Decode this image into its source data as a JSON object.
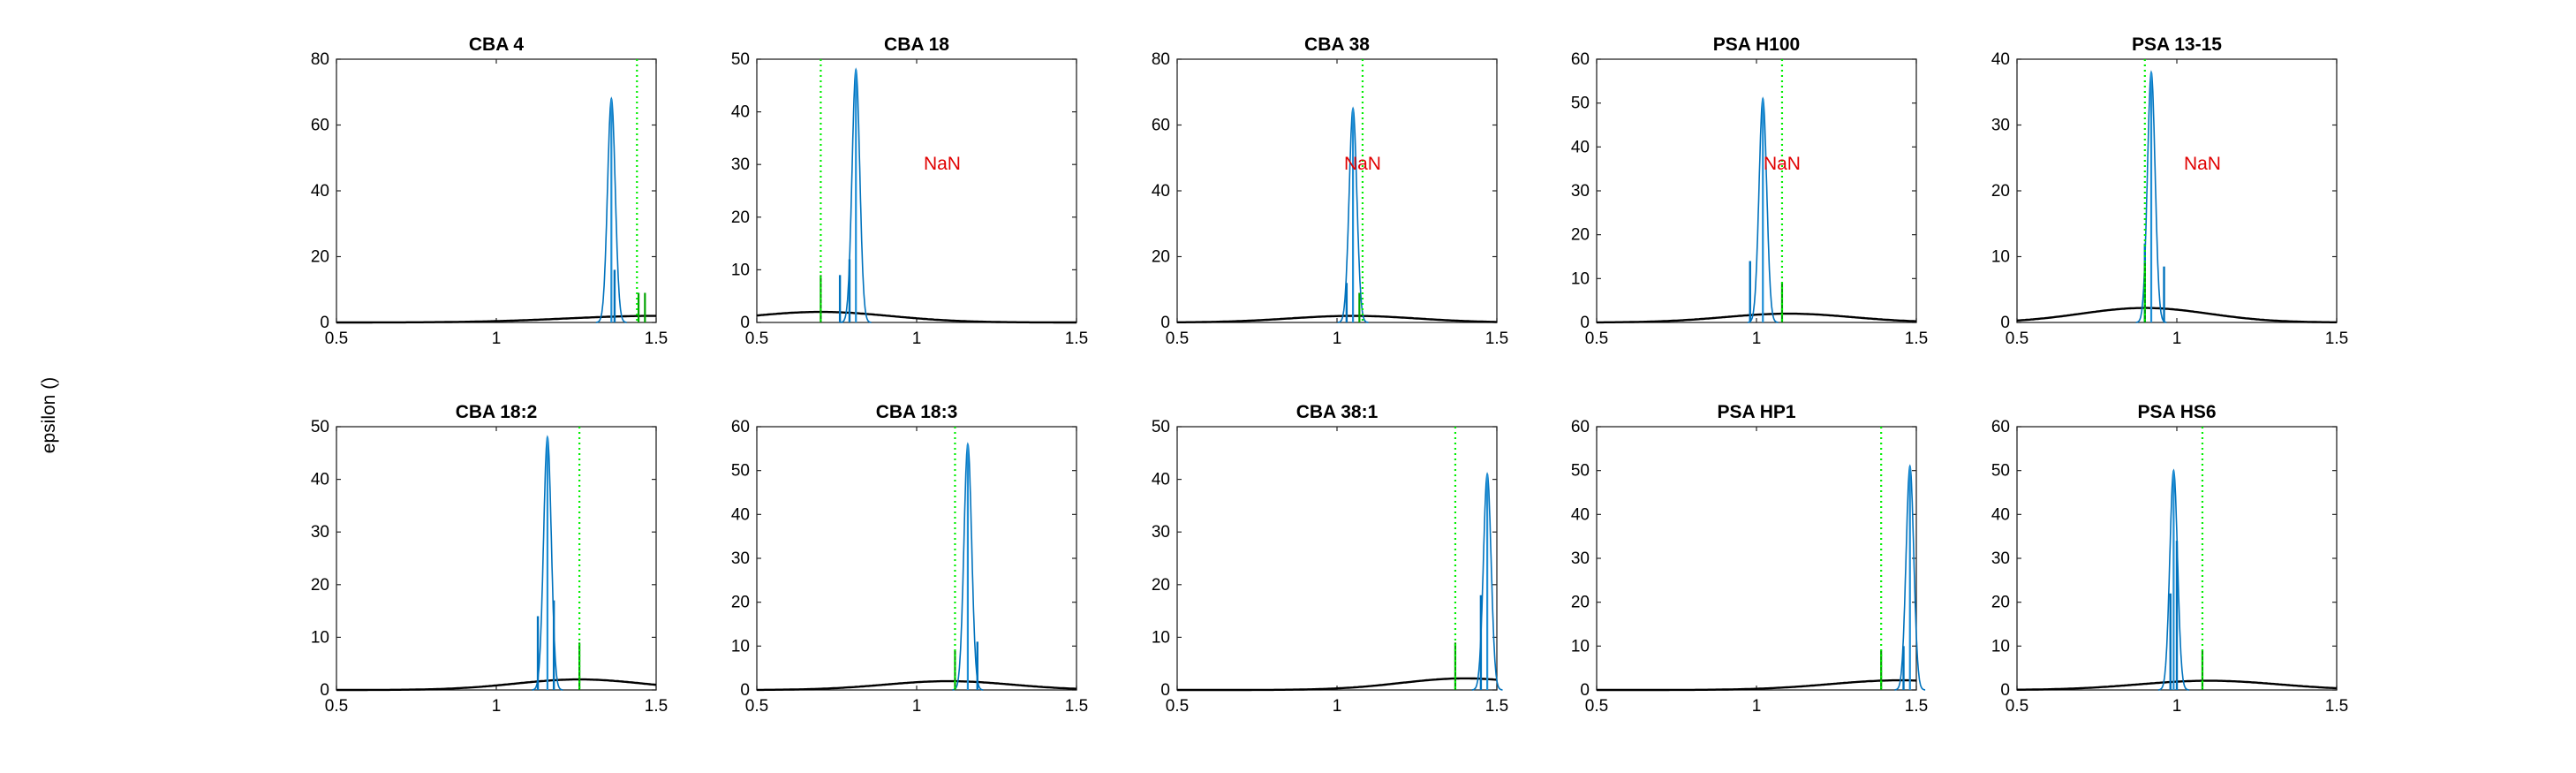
{
  "figure": {
    "ylabel": "epsilon ()",
    "colors": {
      "histogram": "#0072BD",
      "histogram_fill": "#1f8fd6",
      "marker": "#00a300",
      "prior_line": "#000000",
      "reference_line": "#00ee00",
      "nan_text": "#e00000",
      "axes": "#262626"
    }
  },
  "chart_data": [
    {
      "type": "histogram",
      "title": "CBA 4",
      "xlim": [
        0.5,
        1.5
      ],
      "ylim": [
        0,
        80
      ],
      "xticks": [
        "0.5",
        "1",
        "1.5"
      ],
      "yticks": [
        "0",
        "20",
        "40",
        "60",
        "80"
      ],
      "peak_x": 1.36,
      "peak_y": 68,
      "hist_spread": 0.012,
      "spikes": [
        {
          "x": 1.37,
          "y": 16
        }
      ],
      "markers": [
        {
          "x": 1.445,
          "y": 9
        },
        {
          "x": 1.465,
          "y": 9
        }
      ],
      "reference_x": 1.44,
      "prior": {
        "mu": 1.5,
        "sigma": 0.28,
        "peak": 2.0
      },
      "annotation": ""
    },
    {
      "type": "histogram",
      "title": "CBA 18",
      "xlim": [
        0.5,
        1.5
      ],
      "ylim": [
        0,
        50
      ],
      "xticks": [
        "0.5",
        "1",
        "1.5"
      ],
      "yticks": [
        "0",
        "10",
        "20",
        "30",
        "40",
        "50"
      ],
      "peak_x": 0.81,
      "peak_y": 48,
      "hist_spread": 0.012,
      "spikes": [
        {
          "x": 0.76,
          "y": 9
        },
        {
          "x": 0.79,
          "y": 12
        }
      ],
      "markers": [
        {
          "x": 0.7,
          "y": 9
        }
      ],
      "reference_x": 0.7,
      "prior": {
        "mu": 0.7,
        "sigma": 0.22,
        "peak": 2.0
      },
      "annotation": "NaN"
    },
    {
      "type": "histogram",
      "title": "CBA 38",
      "xlim": [
        0.5,
        1.5
      ],
      "ylim": [
        0,
        80
      ],
      "xticks": [
        "0.5",
        "1",
        "1.5"
      ],
      "yticks": [
        "0",
        "20",
        "40",
        "60",
        "80"
      ],
      "peak_x": 1.05,
      "peak_y": 65,
      "hist_spread": 0.012,
      "spikes": [
        {
          "x": 1.03,
          "y": 12
        }
      ],
      "markers": [
        {
          "x": 1.07,
          "y": 9
        }
      ],
      "reference_x": 1.08,
      "prior": {
        "mu": 1.05,
        "sigma": 0.2,
        "peak": 2.0
      },
      "annotation": "NaN"
    },
    {
      "type": "histogram",
      "title": "PSA H100",
      "xlim": [
        0.5,
        1.5
      ],
      "ylim": [
        0,
        60
      ],
      "xticks": [
        "0.5",
        "1",
        "1.5"
      ],
      "yticks": [
        "0",
        "10",
        "20",
        "30",
        "40",
        "50",
        "60"
      ],
      "peak_x": 1.02,
      "peak_y": 51,
      "hist_spread": 0.012,
      "spikes": [
        {
          "x": 0.98,
          "y": 14
        }
      ],
      "markers": [
        {
          "x": 1.08,
          "y": 9
        }
      ],
      "reference_x": 1.08,
      "prior": {
        "mu": 1.1,
        "sigma": 0.2,
        "peak": 2.0
      },
      "annotation": "NaN"
    },
    {
      "type": "histogram",
      "title": "PSA 13-15",
      "xlim": [
        0.5,
        1.5
      ],
      "ylim": [
        0,
        40
      ],
      "xticks": [
        "0.5",
        "1",
        "1.5"
      ],
      "yticks": [
        "0",
        "10",
        "20",
        "30",
        "40"
      ],
      "peak_x": 0.92,
      "peak_y": 38,
      "hist_spread": 0.012,
      "spikes": [
        {
          "x": 0.9,
          "y": 12
        },
        {
          "x": 0.96,
          "y": 8.5
        }
      ],
      "markers": [
        {
          "x": 0.9,
          "y": 9
        }
      ],
      "reference_x": 0.9,
      "prior": {
        "mu": 0.9,
        "sigma": 0.2,
        "peak": 2.2
      },
      "annotation": "NaN"
    },
    {
      "type": "histogram",
      "title": "CBA 18:2",
      "xlim": [
        0.5,
        1.5
      ],
      "ylim": [
        0,
        50
      ],
      "xticks": [
        "0.5",
        "1",
        "1.5"
      ],
      "yticks": [
        "0",
        "10",
        "20",
        "30",
        "40",
        "50"
      ],
      "peak_x": 1.16,
      "peak_y": 48,
      "hist_spread": 0.012,
      "spikes": [
        {
          "x": 1.13,
          "y": 14
        },
        {
          "x": 1.18,
          "y": 17
        }
      ],
      "markers": [
        {
          "x": 1.26,
          "y": 9
        }
      ],
      "reference_x": 1.26,
      "prior": {
        "mu": 1.26,
        "sigma": 0.2,
        "peak": 2.0
      },
      "annotation": ""
    },
    {
      "type": "histogram",
      "title": "CBA 18:3",
      "xlim": [
        0.5,
        1.5
      ],
      "ylim": [
        0,
        60
      ],
      "xticks": [
        "0.5",
        "1",
        "1.5"
      ],
      "yticks": [
        "0",
        "10",
        "20",
        "30",
        "40",
        "50",
        "60"
      ],
      "peak_x": 1.16,
      "peak_y": 56,
      "hist_spread": 0.012,
      "spikes": [
        {
          "x": 1.19,
          "y": 11
        }
      ],
      "markers": [
        {
          "x": 1.12,
          "y": 9
        }
      ],
      "reference_x": 1.12,
      "prior": {
        "mu": 1.1,
        "sigma": 0.2,
        "peak": 2.0
      },
      "annotation": ""
    },
    {
      "type": "histogram",
      "title": "CBA 38:1",
      "xlim": [
        0.5,
        1.5
      ],
      "ylim": [
        0,
        50
      ],
      "xticks": [
        "0.5",
        "1",
        "1.5"
      ],
      "yticks": [
        "0",
        "10",
        "20",
        "30",
        "40",
        "50"
      ],
      "peak_x": 1.47,
      "peak_y": 41,
      "hist_spread": 0.012,
      "spikes": [
        {
          "x": 1.45,
          "y": 18
        }
      ],
      "markers": [
        {
          "x": 1.37,
          "y": 9
        }
      ],
      "reference_x": 1.37,
      "prior": {
        "mu": 1.4,
        "sigma": 0.2,
        "peak": 2.2
      },
      "annotation": ""
    },
    {
      "type": "histogram",
      "title": "PSA HP1",
      "xlim": [
        0.5,
        1.5
      ],
      "ylim": [
        0,
        60
      ],
      "xticks": [
        "0.5",
        "1",
        "1.5"
      ],
      "yticks": [
        "0",
        "10",
        "20",
        "30",
        "40",
        "50",
        "60"
      ],
      "peak_x": 1.48,
      "peak_y": 51,
      "hist_spread": 0.012,
      "spikes": [
        {
          "x": 1.46,
          "y": 10
        }
      ],
      "markers": [
        {
          "x": 1.39,
          "y": 9
        }
      ],
      "reference_x": 1.39,
      "prior": {
        "mu": 1.45,
        "sigma": 0.22,
        "peak": 2.2
      },
      "annotation": ""
    },
    {
      "type": "histogram",
      "title": "PSA HS6",
      "xlim": [
        0.5,
        1.5
      ],
      "ylim": [
        0,
        60
      ],
      "xticks": [
        "0.5",
        "1",
        "1.5"
      ],
      "yticks": [
        "0",
        "10",
        "20",
        "30",
        "40",
        "50",
        "60"
      ],
      "peak_x": 0.99,
      "peak_y": 50,
      "hist_spread": 0.012,
      "spikes": [
        {
          "x": 0.98,
          "y": 22
        },
        {
          "x": 1.0,
          "y": 34
        }
      ],
      "markers": [
        {
          "x": 1.08,
          "y": 9
        }
      ],
      "reference_x": 1.08,
      "prior": {
        "mu": 1.1,
        "sigma": 0.22,
        "peak": 2.1
      },
      "annotation": ""
    }
  ]
}
